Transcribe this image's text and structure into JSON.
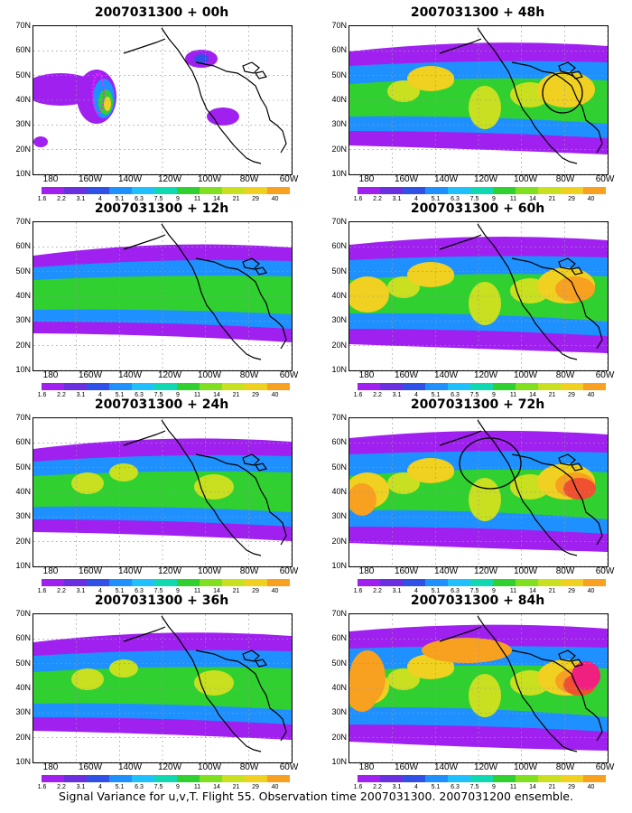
{
  "panels": [
    {
      "title": "2007031300 + 00h",
      "level": 0
    },
    {
      "title": "2007031300 + 48h",
      "level": 4
    },
    {
      "title": "2007031300 + 12h",
      "level": 1
    },
    {
      "title": "2007031300 + 60h",
      "level": 5
    },
    {
      "title": "2007031300 + 24h",
      "level": 2
    },
    {
      "title": "2007031300 + 72h",
      "level": 6
    },
    {
      "title": "2007031300 + 36h",
      "level": 3
    },
    {
      "title": "2007031300 + 84h",
      "level": 7
    }
  ],
  "lat_labels": [
    "70N",
    "60N",
    "50N",
    "40N",
    "30N",
    "20N",
    "10N"
  ],
  "lon_labels": [
    "180",
    "160W",
    "140W",
    "120W",
    "100W",
    "80W",
    "60W"
  ],
  "colorbar": {
    "labels": [
      "1.6",
      "2.2",
      "3.1",
      "4",
      "5.1",
      "6.3",
      "7.5",
      "9",
      "11",
      "14",
      "21",
      "29",
      "40"
    ],
    "colors": [
      "#a020f0",
      "#6a30e0",
      "#3050e8",
      "#1e90ff",
      "#20c0ff",
      "#10d8b0",
      "#30d030",
      "#80e020",
      "#c8e020",
      "#f0d020",
      "#f8a020",
      "#f05030",
      "#f02080"
    ]
  },
  "caption": "Signal Variance for u,v,T. Flight 55. Observation time 2007031300. 2007031200 ensemble."
}
